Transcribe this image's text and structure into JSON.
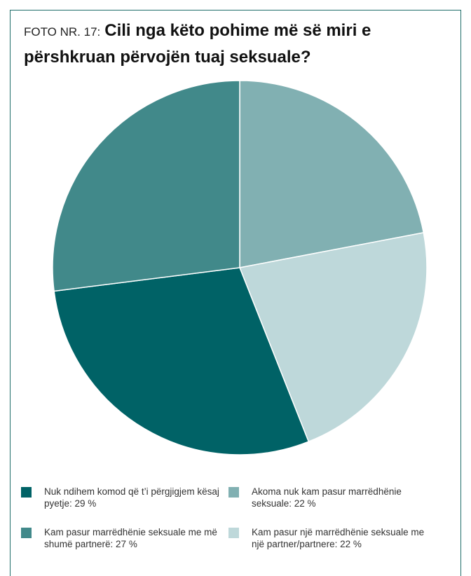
{
  "header": {
    "prefix": "FOTO NR. 17:",
    "title": "Cili nga këto pohime më së miri e përshkruan përvojën tuaj seksuale?"
  },
  "colors": {
    "frame": "#1f6e6a",
    "slice_separator": "#ffffff"
  },
  "chart_data": {
    "type": "pie",
    "title": "Cili nga këto pohime më së miri e përshkruan përvojën tuaj seksuale?",
    "start": "12 o'clock",
    "direction": "clockwise",
    "slices": [
      {
        "label": "Akoma nuk kam pasur marrëdhënie seksuale: 22%",
        "value": 22,
        "color": "#81b0b2"
      },
      {
        "label": "Kam pasur një marrëdhënie seksuale me një partner/partnere: 22%",
        "value": 22,
        "color": "#bed8da"
      },
      {
        "label": "Nuk ndihem komod që t’i përgjigjem kësaj pyetje: 29%",
        "value": 29,
        "color": "#006266"
      },
      {
        "label": "Kam pasur marrëdhënie seksuale me më shumë partnerë: 27%",
        "value": 27,
        "color": "#41898a"
      }
    ],
    "legend_position": "bottom",
    "legend": [
      {
        "label": "Nuk ndihem komod që t’i përgjigjem kësaj pyetje: 29 %",
        "color": "#006266"
      },
      {
        "label": "Akoma nuk kam pasur marrëdhënie seksuale: 22 %",
        "color": "#81b0b2"
      },
      {
        "label": "Kam pasur marrëdhënie seksuale me më shumë partnerë: 27 %",
        "color": "#41898a"
      },
      {
        "label": "Kam pasur një marrëdhënie seksuale me një partner/partnere: 22 %",
        "color": "#bed8da"
      }
    ]
  }
}
